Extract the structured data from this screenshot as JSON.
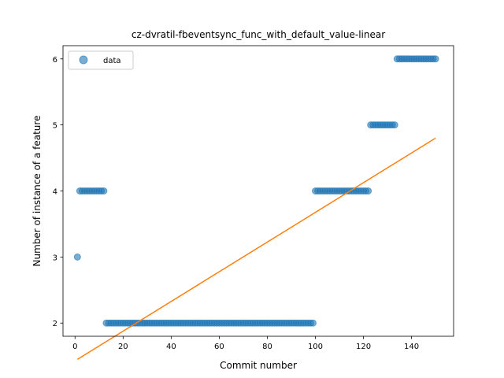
{
  "chart_data": {
    "type": "scatter",
    "title": "cz-dvratil-fbeventsync_func_with_default_value-linear",
    "xlabel": "Commit number",
    "ylabel": "Number of instance of a feature",
    "xlim": [
      -5,
      157.5
    ],
    "ylim": [
      1.8,
      6.2
    ],
    "xticks": [
      0,
      20,
      40,
      60,
      80,
      100,
      120,
      140
    ],
    "yticks": [
      2,
      3,
      4,
      5,
      6
    ],
    "grid": false,
    "legend": {
      "placement": "upper-left",
      "entries": [
        "data"
      ]
    },
    "colors": {
      "data": "#1f77b4",
      "fit": "#ff7f0e"
    },
    "series": [
      {
        "name": "data",
        "kind": "scatter",
        "runs": [
          {
            "x_start": 1,
            "x_end": 1,
            "y": 3
          },
          {
            "x_start": 2,
            "x_end": 12,
            "y": 4
          },
          {
            "x_start": 13,
            "x_end": 99,
            "y": 2
          },
          {
            "x_start": 100,
            "x_end": 122,
            "y": 4
          },
          {
            "x_start": 123,
            "x_end": 133,
            "y": 5
          },
          {
            "x_start": 134,
            "x_end": 150,
            "y": 6
          }
        ]
      },
      {
        "name": "",
        "kind": "line",
        "x": [
          1,
          150
        ],
        "y": [
          1.45,
          4.8
        ]
      }
    ]
  }
}
